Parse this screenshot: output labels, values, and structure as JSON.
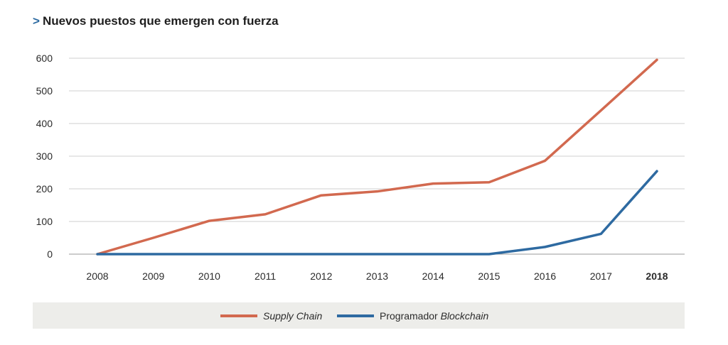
{
  "title": {
    "marker": ">",
    "text": "Nuevos puestos que emergen con fuerza"
  },
  "legend": {
    "supply_chain": {
      "text": "Supply Chain"
    },
    "blockchain": {
      "prefix": "Programador ",
      "italic": "Blockchain"
    }
  },
  "chart_data": {
    "type": "line",
    "title": "Nuevos puestos que emergen con fuerza",
    "x": [
      "2008",
      "2009",
      "2010",
      "2011",
      "2012",
      "2013",
      "2014",
      "2015",
      "2016",
      "2017",
      "2018"
    ],
    "highlight_x": "2018",
    "ylim": [
      0,
      600
    ],
    "yticks": [
      0,
      100,
      200,
      300,
      400,
      500,
      600
    ],
    "grid": true,
    "legend_position": "bottom",
    "series": [
      {
        "name": "Supply Chain",
        "color": "#d2694f",
        "values": [
          0,
          50,
          102,
          122,
          180,
          192,
          216,
          220,
          286,
          440,
          595
        ]
      },
      {
        "name": "Programador Blockchain",
        "color": "#2e6aa1",
        "values": [
          0,
          0,
          0,
          0,
          0,
          0,
          0,
          0,
          22,
          62,
          254
        ]
      }
    ]
  }
}
